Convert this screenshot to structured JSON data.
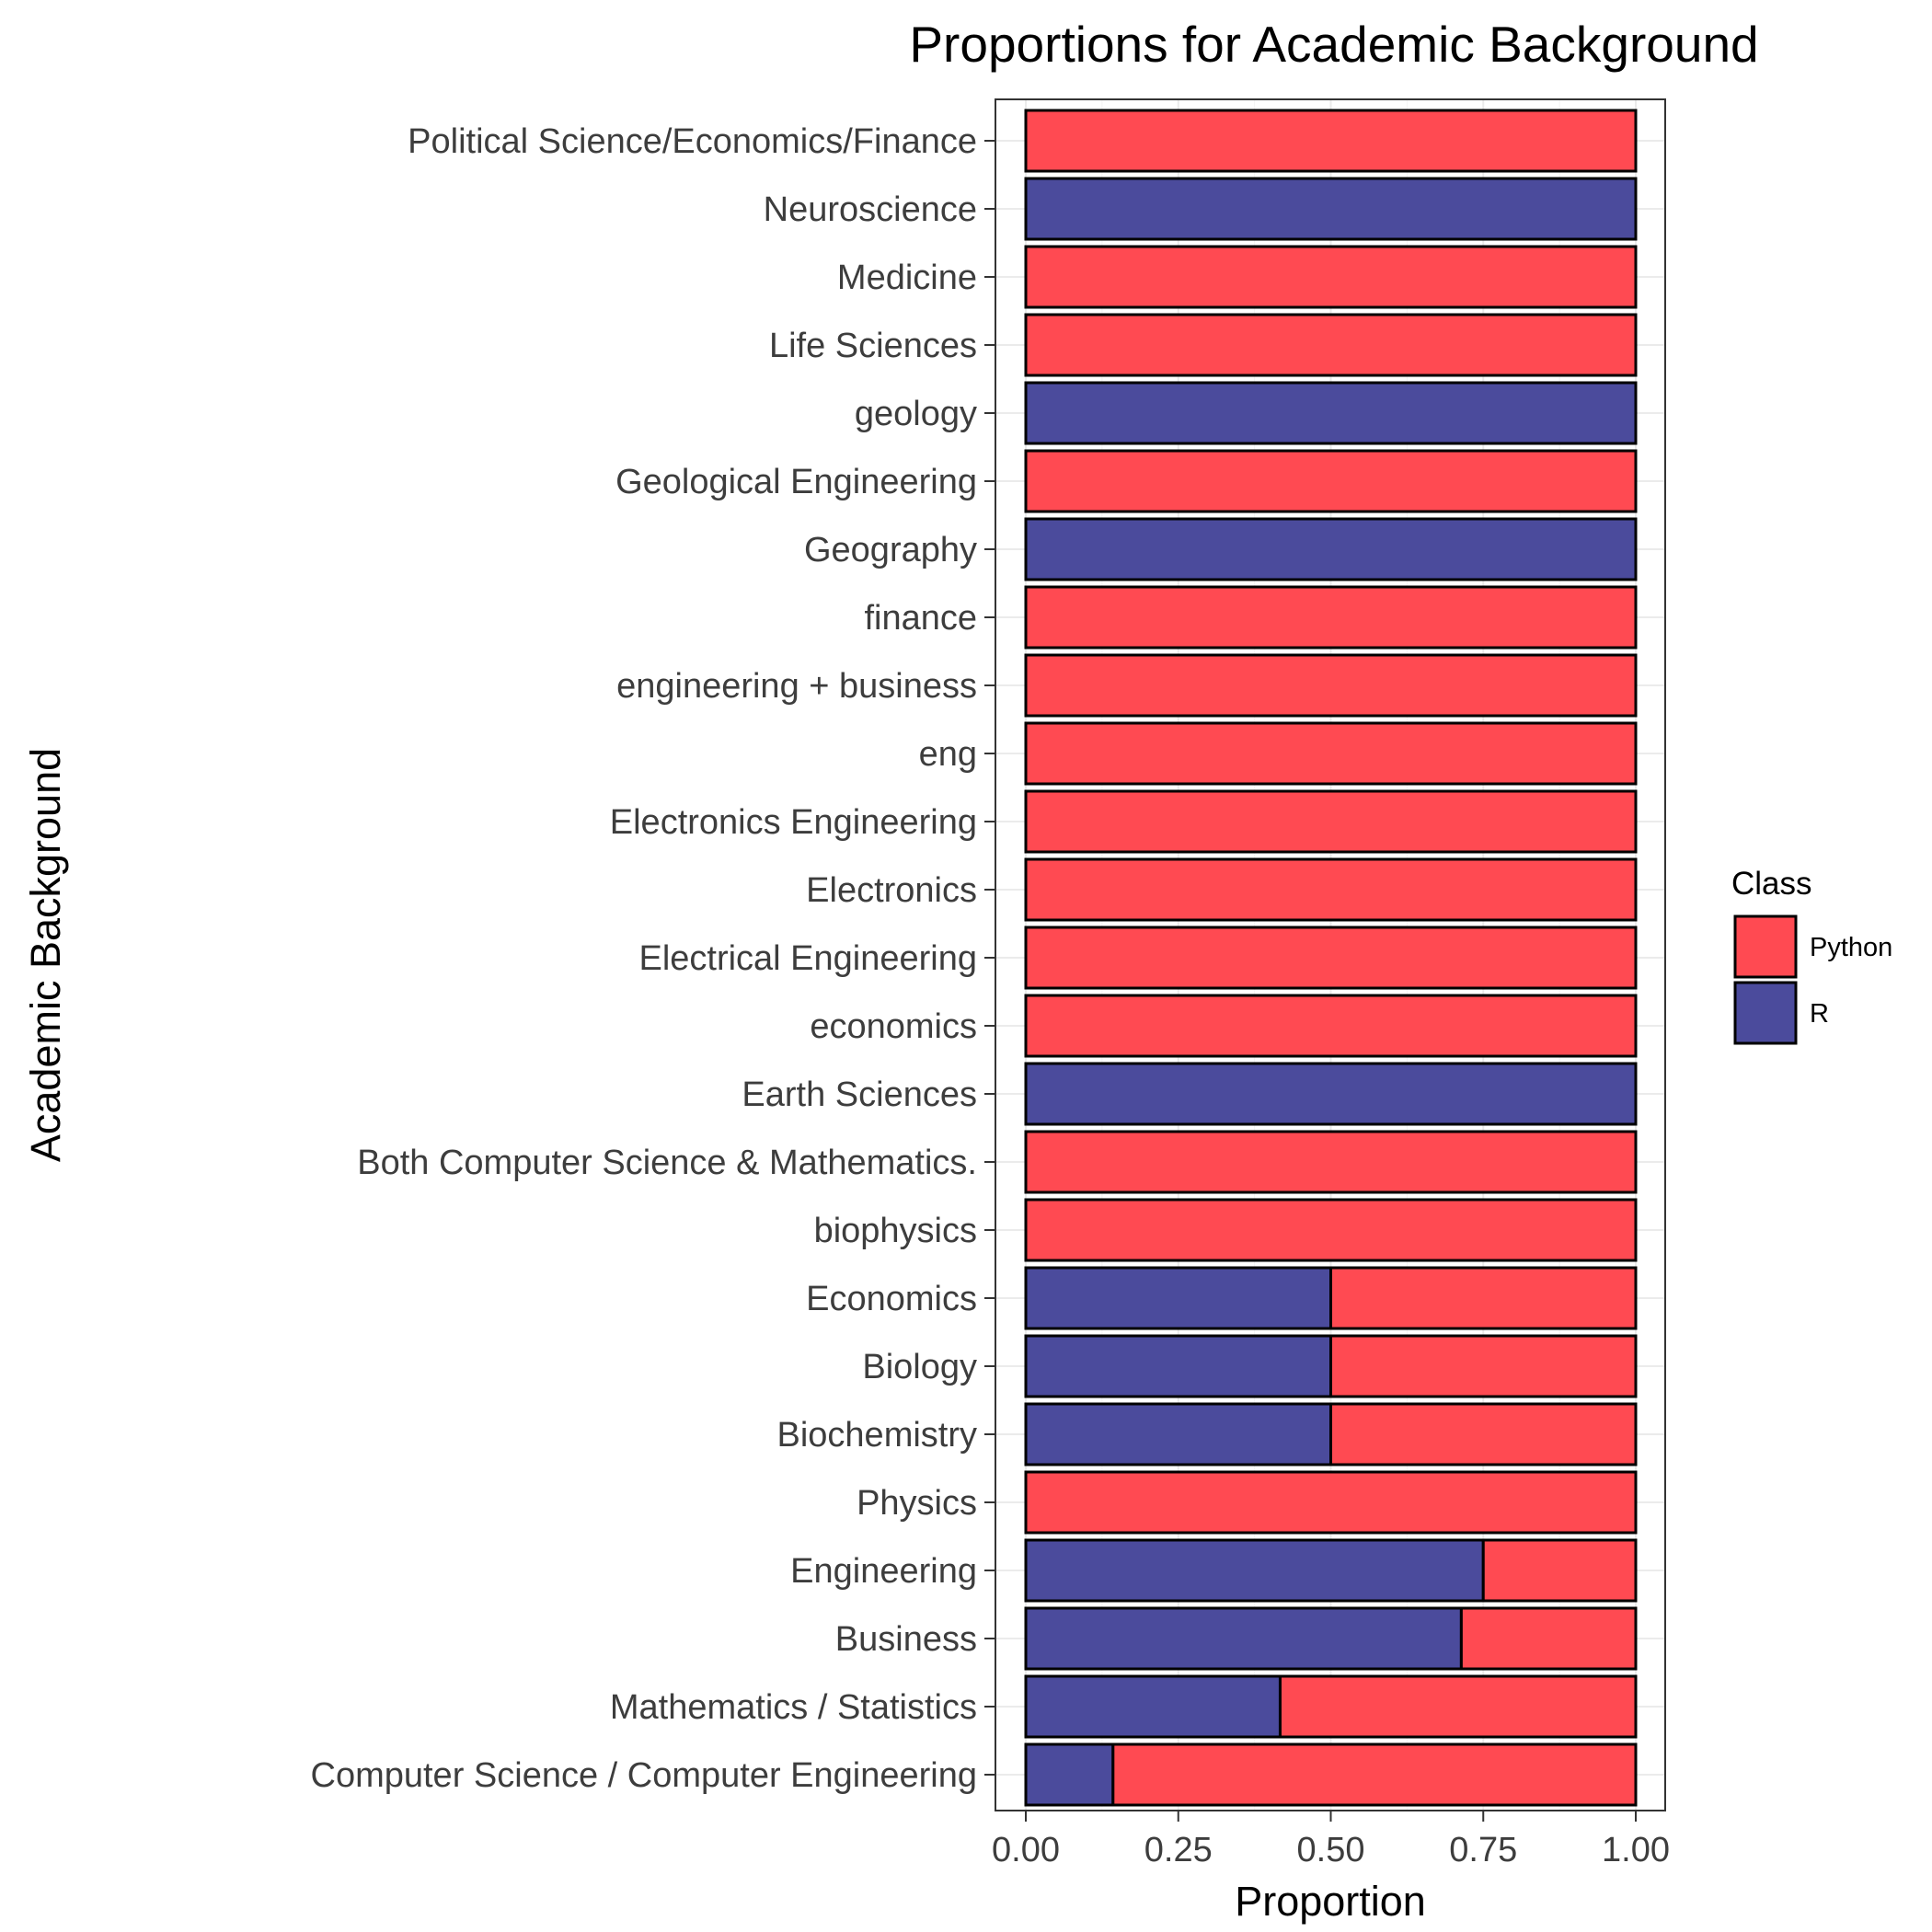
{
  "chart_data": {
    "type": "bar",
    "orientation": "horizontal",
    "stacked": true,
    "title": "Proportions for Academic Background",
    "xlabel": "Proportion",
    "ylabel": "Academic Background",
    "xlim": [
      0,
      1
    ],
    "x_ticks": [
      "0.00",
      "0.25",
      "0.50",
      "0.75",
      "1.00"
    ],
    "grid": true,
    "legend": {
      "title": "Class",
      "position": "right",
      "entries": [
        {
          "label": "Python",
          "color": "#ff4a52"
        },
        {
          "label": "R",
          "color": "#4b4b9c"
        }
      ]
    },
    "categories": [
      "Political Science/Economics/Finance",
      "Neuroscience",
      "Medicine",
      "Life Sciences",
      "geology",
      "Geological Engineering",
      "Geography",
      "finance",
      "engineering + business",
      "eng",
      "Electronics Engineering",
      "Electronics",
      "Electrical Engineering",
      "economics",
      "Earth Sciences",
      "Both Computer Science & Mathematics.",
      "biophysics",
      "Economics",
      "Biology",
      "Biochemistry",
      "Physics",
      "Engineering",
      "Business",
      "Mathematics / Statistics",
      "Computer Science / Computer Engineering"
    ],
    "series": [
      {
        "name": "R",
        "color": "#4b4b9c",
        "values": [
          0,
          1,
          0,
          0,
          1,
          0,
          1,
          0,
          0,
          0,
          0,
          0,
          0,
          0,
          1,
          0,
          0,
          0.5,
          0.5,
          0.5,
          0,
          0.75,
          0.714,
          0.417,
          0.143
        ]
      },
      {
        "name": "Python",
        "color": "#ff4a52",
        "values": [
          1,
          0,
          1,
          1,
          0,
          1,
          0,
          1,
          1,
          1,
          1,
          1,
          1,
          1,
          0,
          1,
          1,
          0.5,
          0.5,
          0.5,
          1,
          0.25,
          0.286,
          0.583,
          0.857
        ]
      }
    ]
  }
}
